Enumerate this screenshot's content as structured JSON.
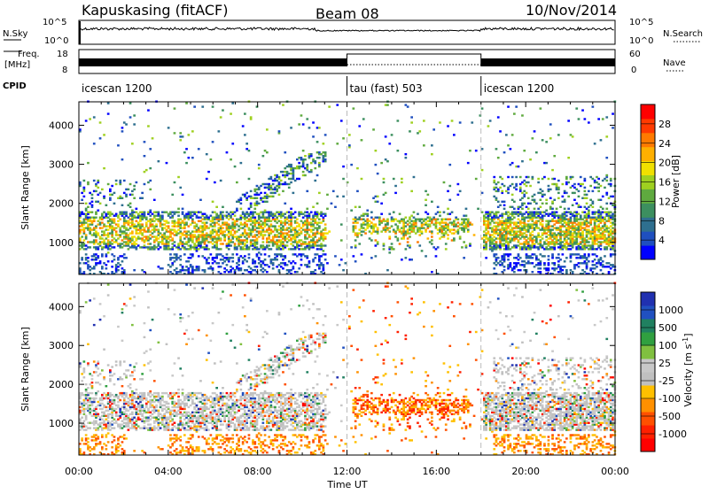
{
  "header": {
    "station": "Kapuskasing (fitACF)",
    "beam": "Beam 08",
    "date": "10/Nov/2014"
  },
  "top_panels": {
    "nsky_label": "N.Sky",
    "nsearch_label": "N.Search",
    "freq_label_line1": "Freq.",
    "freq_label_line2": "[MHz]",
    "nave_label": "Nave",
    "cpid_label": "CPID",
    "nsky_ticks": [
      "10^5",
      "10^0"
    ],
    "nsearch_ticks": [
      "10^5",
      "10^0"
    ],
    "freq_ticks": [
      "18",
      "8"
    ],
    "nave_ticks": [
      "60",
      "0"
    ]
  },
  "colors": {
    "power": [
      "#0000ff",
      "#1f4fbf",
      "#2e6f8f",
      "#3c8f5f",
      "#5faa3f",
      "#9fd020",
      "#f0e000",
      "#ffb000",
      "#ff7a00",
      "#ff3a00",
      "#ff0000"
    ],
    "velocity": [
      "#2030b0",
      "#2050c0",
      "#208060",
      "#30a040",
      "#80c040",
      "#c8c8c8",
      "#c0c0c0",
      "#ffc000",
      "#ff9000",
      "#ff5000",
      "#ff2000",
      "#ff0000"
    ]
  },
  "chart_data": [
    {
      "type": "table",
      "panel": "cpid",
      "segments": [
        {
          "start": "00:00",
          "end": "12:00",
          "label": "icescan 1200"
        },
        {
          "start": "12:00",
          "end": "18:00",
          "label": "tau (fast) 503"
        },
        {
          "start": "18:00",
          "end": "24:00",
          "label": "icescan 1200"
        }
      ]
    },
    {
      "type": "heatmap",
      "panel": "power",
      "xlabel": "",
      "ylabel": "Slant Range [km]",
      "xlim_hours": [
        0,
        24
      ],
      "ylim_km": [
        180,
        4600
      ],
      "x_tick_labels": [
        "00:00",
        "04:00",
        "08:00",
        "12:00",
        "16:00",
        "20:00",
        "00:00"
      ],
      "y_tick_labels": [
        "1000",
        "2000",
        "3000",
        "4000"
      ],
      "colorbar": {
        "label": "Power [dB]",
        "tick_labels": [
          "28",
          "24",
          "20",
          "16",
          "12",
          "8",
          "4"
        ],
        "range": [
          0,
          30
        ]
      }
    },
    {
      "type": "heatmap",
      "panel": "velocity",
      "xlabel": "Time UT",
      "ylabel": "Slant Range [km]",
      "xlim_hours": [
        0,
        24
      ],
      "ylim_km": [
        180,
        4600
      ],
      "x_tick_labels": [
        "00:00",
        "04:00",
        "08:00",
        "12:00",
        "16:00",
        "20:00",
        "00:00"
      ],
      "y_tick_labels": [
        "1000",
        "2000",
        "3000",
        "4000"
      ],
      "colorbar": {
        "label": "Velocity [m s^-1]",
        "tick_labels": [
          "1000",
          "500",
          "100",
          "25",
          "-25",
          "-100",
          "-500",
          "-1000"
        ]
      }
    }
  ]
}
